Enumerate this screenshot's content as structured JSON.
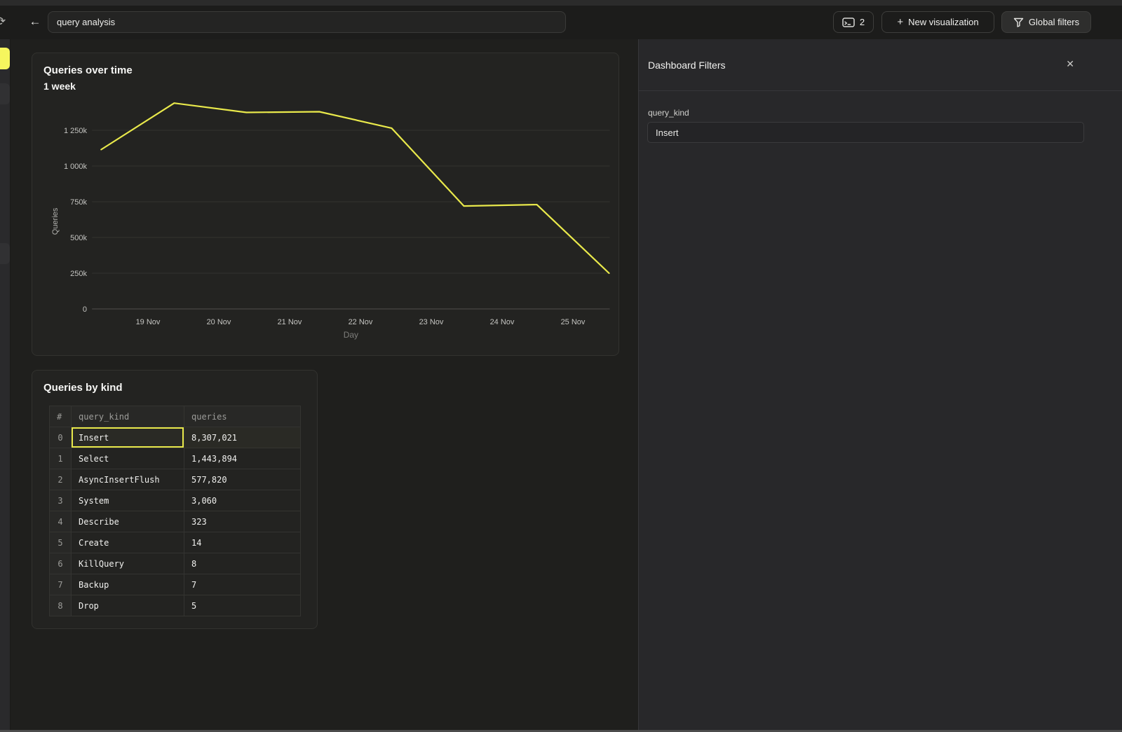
{
  "topbar": {
    "title_value": "query analysis",
    "console_button": {
      "count": "2",
      "icon": "sql-console-icon"
    },
    "new_visualization_label": "New visualization",
    "global_filters_label": "Global filters"
  },
  "icons": {
    "back": "←",
    "refresh": "⟳",
    "plus": "+",
    "close": "✕"
  },
  "sidebar": {
    "items": [
      {
        "state": "active"
      },
      {
        "state": "default"
      },
      {
        "state": "default"
      }
    ]
  },
  "chart_card": {
    "title": "Queries over time",
    "subtitle": "1 week"
  },
  "chart_data": {
    "type": "line",
    "title": "Queries over time",
    "subtitle": "1 week",
    "xlabel": "Day",
    "ylabel": "Queries",
    "x_tick_labels": [
      "19 Nov",
      "20 Nov",
      "21 Nov",
      "22 Nov",
      "23 Nov",
      "24 Nov",
      "25 Nov"
    ],
    "y_ticks": [
      {
        "label": "0",
        "value": 0
      },
      {
        "label": "250k",
        "value": 250000
      },
      {
        "label": "500k",
        "value": 500000
      },
      {
        "label": "750k",
        "value": 750000
      },
      {
        "label": "1 000k",
        "value": 1000000
      },
      {
        "label": "1 250k",
        "value": 1250000
      }
    ],
    "ylim": [
      0,
      1500000
    ],
    "xlim_days": [
      -0.79,
      6.52
    ],
    "grid": true,
    "legend": "none",
    "series": [
      {
        "name": "Queries",
        "color": "#e9e94b",
        "points": [
          {
            "day": -0.66,
            "value": 1115000
          },
          {
            "day": 0.37,
            "value": 1440000
          },
          {
            "day": 1.39,
            "value": 1375000
          },
          {
            "day": 2.42,
            "value": 1380000
          },
          {
            "day": 3.44,
            "value": 1265000
          },
          {
            "day": 4.46,
            "value": 720000
          },
          {
            "day": 5.49,
            "value": 730000
          },
          {
            "day": 6.51,
            "value": 250000
          }
        ]
      }
    ]
  },
  "table_card": {
    "title": "Queries by kind",
    "columns": [
      "#",
      "query_kind",
      "queries"
    ],
    "rows": [
      {
        "index": "0",
        "query_kind": "Insert",
        "queries": "8,307,021",
        "selected": true
      },
      {
        "index": "1",
        "query_kind": "Select",
        "queries": "1,443,894",
        "selected": false
      },
      {
        "index": "2",
        "query_kind": "AsyncInsertFlush",
        "queries": "577,820",
        "selected": false
      },
      {
        "index": "3",
        "query_kind": "System",
        "queries": "3,060",
        "selected": false
      },
      {
        "index": "4",
        "query_kind": "Describe",
        "queries": "323",
        "selected": false
      },
      {
        "index": "5",
        "query_kind": "Create",
        "queries": "14",
        "selected": false
      },
      {
        "index": "6",
        "query_kind": "KillQuery",
        "queries": "8",
        "selected": false
      },
      {
        "index": "7",
        "query_kind": "Backup",
        "queries": "7",
        "selected": false
      },
      {
        "index": "8",
        "query_kind": "Drop",
        "queries": "5",
        "selected": false
      }
    ]
  },
  "filters_panel": {
    "title": "Dashboard Filters",
    "fields": [
      {
        "label": "query_kind",
        "value": "Insert"
      }
    ]
  },
  "colors": {
    "accent_yellow": "#f6f65e",
    "line_yellow": "#e9e94b",
    "selection_yellow": "#e8e84a",
    "grid_line": "#333330",
    "axis_line": "#504f4d"
  }
}
